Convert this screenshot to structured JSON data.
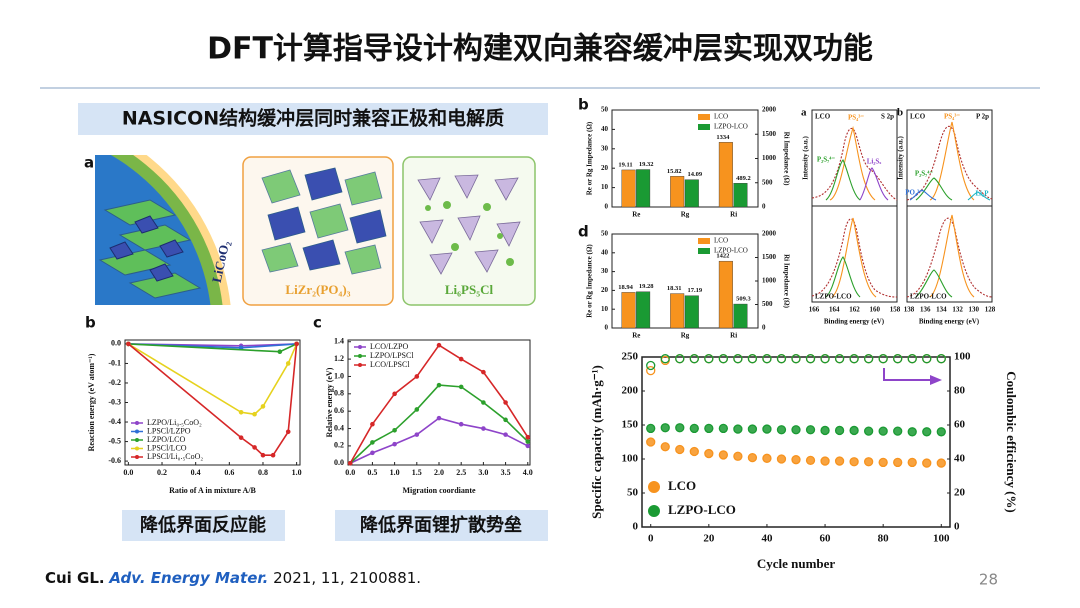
{
  "title": "DFT计算指导设计构建双向兼容缓冲层实现双功能",
  "subtitle": "NASICON结构缓冲层同时兼容正极和电解质",
  "structures": {
    "panel_label": "a",
    "labels": [
      "LiCoO₂",
      "LiZr₂(PO₄)₃",
      "Li₆PS₅Cl"
    ]
  },
  "captions": [
    "降低界面反应能",
    "降低界面锂扩散势垒"
  ],
  "xps": {
    "panel_labels": [
      "a",
      "b"
    ],
    "samples": [
      "LCO",
      "LZPO-LCO"
    ],
    "orbitals": [
      "S 2p",
      "P 2p"
    ],
    "peaks_s": [
      "PS₄³⁻",
      "P₂S₇⁴⁻",
      "Li₂Sₓ"
    ],
    "peaks_p": [
      "PS₄³⁻",
      "P₂S₇⁴⁻",
      "PO₄³⁻",
      "Li₃P"
    ],
    "xticks_s": [
      "166",
      "164",
      "162",
      "160",
      "158"
    ],
    "xticks_p": [
      "138",
      "136",
      "134",
      "132",
      "130",
      "128"
    ],
    "xlabel": "Binding energy (eV)",
    "ylabel": "Intensity (a.u.)"
  },
  "citation": {
    "author": "Cui GL.",
    "journal": "Adv. Energy Mater.",
    "details": "2021, 11, 2100881."
  },
  "page_number": "28",
  "chart_data": [
    {
      "type": "line",
      "panel_label": "b",
      "xlabel": "Ratio of A in mixture A/B",
      "ylabel": "Reaction energy (eV atom⁻¹)",
      "xlim": [
        -0.02,
        1.02
      ],
      "xticks": [
        {
          "value": 0,
          "label": "0.0"
        },
        0.2,
        0.4,
        0.6,
        0.8,
        {
          "value": 1,
          "label": "1.0"
        }
      ],
      "ylim": [
        -0.62,
        0.02
      ],
      "yticks": [
        {
          "value": 0,
          "label": "0.0"
        },
        -0.1,
        -0.2,
        -0.3,
        -0.4,
        -0.5,
        -0.6
      ],
      "legend": "lower left",
      "series": [
        {
          "name": "LZPO/Li₀.₅CoO₂",
          "color": "#8e44c9",
          "x": [
            0,
            0.67,
            1
          ],
          "values": [
            0,
            -0.01,
            0
          ]
        },
        {
          "name": "LPSCl/LZPO",
          "color": "#2f6fd6",
          "x": [
            0,
            0.67,
            1
          ],
          "values": [
            0,
            -0.02,
            0
          ]
        },
        {
          "name": "LZPO/LCO",
          "color": "#2ca02c",
          "x": [
            0,
            0.9,
            1
          ],
          "values": [
            0,
            -0.04,
            0
          ]
        },
        {
          "name": "LPSCl/LCO",
          "color": "#e6d21e",
          "x": [
            0,
            0.67,
            0.75,
            0.8,
            0.95,
            1
          ],
          "values": [
            0,
            -0.35,
            -0.36,
            -0.32,
            -0.1,
            0
          ]
        },
        {
          "name": "LPSCl/Li₀.₅CoO₂",
          "color": "#d62728",
          "x": [
            0,
            0.67,
            0.75,
            0.8,
            0.86,
            0.95,
            1
          ],
          "values": [
            0,
            -0.48,
            -0.53,
            -0.57,
            -0.57,
            -0.45,
            0
          ]
        }
      ]
    },
    {
      "type": "line",
      "panel_label": "c",
      "xlabel": "Migration coordiante",
      "ylabel": "Relative energy (eV)",
      "x": [
        0,
        0.5,
        1,
        1.5,
        2,
        2.5,
        3,
        3.5,
        4
      ],
      "xlim": [
        -0.05,
        4.05
      ],
      "xticks": [
        {
          "value": 0,
          "label": "0.0"
        },
        0.5,
        {
          "value": 1,
          "label": "1.0"
        },
        1.5,
        {
          "value": 2,
          "label": "2.0"
        },
        2.5,
        {
          "value": 3,
          "label": "3.0"
        },
        3.5,
        {
          "value": 4,
          "label": "4.0"
        }
      ],
      "ylim": [
        -0.02,
        1.42
      ],
      "yticks": [
        {
          "value": 0,
          "label": "0.0"
        },
        0.2,
        0.4,
        0.6,
        0.8,
        {
          "value": 1,
          "label": "1.0"
        },
        1.2,
        1.4
      ],
      "legend": "upper left",
      "series": [
        {
          "name": "LCO/LZPO",
          "color": "#8e44c9",
          "values": [
            0,
            0.12,
            0.22,
            0.33,
            0.52,
            0.45,
            0.4,
            0.33,
            0.2
          ]
        },
        {
          "name": "LZPO/LPSCl",
          "color": "#2ca02c",
          "values": [
            0,
            0.24,
            0.38,
            0.62,
            0.9,
            0.88,
            0.7,
            0.5,
            0.25
          ]
        },
        {
          "name": "LCO/LPSCl",
          "color": "#d62728",
          "values": [
            0,
            0.45,
            0.8,
            1.0,
            1.36,
            1.2,
            1.05,
            0.7,
            0.3
          ]
        }
      ]
    },
    {
      "type": "bar",
      "panel_label": "b",
      "ylabel": "Re or Rg Impedance (Ω)",
      "y2label": "Ri Impedance (Ω)",
      "categories": [
        "Re",
        "Rg",
        "Ri"
      ],
      "category_axes": [
        "y",
        "y",
        "y2"
      ],
      "ylim": [
        0,
        50
      ],
      "yticks": [
        0,
        10,
        20,
        30,
        40,
        50
      ],
      "y2lim": [
        0,
        2000
      ],
      "y2ticks": [
        0,
        500,
        1000,
        1500,
        2000
      ],
      "legend": "upper right",
      "series": [
        {
          "name": "LCO",
          "color": "#f7931e",
          "values": [
            19.11,
            15.82,
            1334
          ]
        },
        {
          "name": "LZPO-LCO",
          "color": "#1a9a33",
          "values": [
            19.32,
            14.09,
            489.2
          ]
        }
      ]
    },
    {
      "type": "bar",
      "panel_label": "d",
      "ylabel": "Re or Rg Impedance (Ω)",
      "y2label": "Ri Impedance (Ω)",
      "categories": [
        "Re",
        "Rg",
        "Ri"
      ],
      "category_axes": [
        "y",
        "y",
        "y2"
      ],
      "ylim": [
        0,
        50
      ],
      "yticks": [
        0,
        10,
        20,
        30,
        40,
        50
      ],
      "y2lim": [
        0,
        2000
      ],
      "y2ticks": [
        0,
        500,
        1000,
        1500,
        2000
      ],
      "legend": "upper right",
      "series": [
        {
          "name": "LCO",
          "color": "#f7931e",
          "values": [
            18.94,
            18.31,
            1422
          ]
        },
        {
          "name": "LZPO-LCO",
          "color": "#1a9a33",
          "values": [
            19.28,
            17.19,
            509.3
          ]
        }
      ]
    },
    {
      "type": "scatter",
      "xlabel": "Cycle number",
      "ylabel": "Specific capacity (mAh·g⁻¹)",
      "y2label": "Coulombic efficiency (%)",
      "x": [
        0,
        5,
        10,
        15,
        20,
        25,
        30,
        35,
        40,
        45,
        50,
        55,
        60,
        65,
        70,
        75,
        80,
        85,
        90,
        95,
        100
      ],
      "xlim": [
        -3,
        103
      ],
      "xticks": [
        0,
        20,
        40,
        60,
        80,
        100
      ],
      "ylim": [
        0,
        250
      ],
      "yticks": [
        0,
        50,
        100,
        150,
        200,
        250
      ],
      "y2lim": [
        0,
        100
      ],
      "y2ticks": [
        0,
        20,
        40,
        60,
        80,
        100
      ],
      "legend": "lower left",
      "series": [
        {
          "name": "LCO",
          "color": "#f7931e",
          "values": [
            125,
            118,
            114,
            111,
            108,
            106,
            104,
            102,
            101,
            100,
            99,
            98,
            97,
            97,
            96,
            96,
            95,
            95,
            95,
            94,
            94
          ]
        },
        {
          "name": "LZPO-LCO",
          "color": "#1a9a33",
          "values": [
            145,
            146,
            146,
            145,
            145,
            145,
            144,
            144,
            144,
            143,
            143,
            143,
            142,
            142,
            142,
            141,
            141,
            141,
            140,
            140,
            140
          ]
        },
        {
          "color": "#f7931e",
          "axis": "y2",
          "filled": false,
          "values": [
            92,
            98,
            99,
            99,
            99,
            99,
            99,
            99,
            99,
            99,
            99,
            99,
            99,
            99,
            99,
            99,
            99,
            99,
            99,
            99,
            99
          ]
        },
        {
          "color": "#1a9a33",
          "axis": "y2",
          "filled": false,
          "values": [
            95,
            99,
            99,
            99,
            99,
            99,
            99,
            99,
            99,
            99,
            99,
            99,
            99,
            99,
            99,
            99,
            99,
            99,
            99,
            99,
            99
          ]
        }
      ]
    }
  ]
}
